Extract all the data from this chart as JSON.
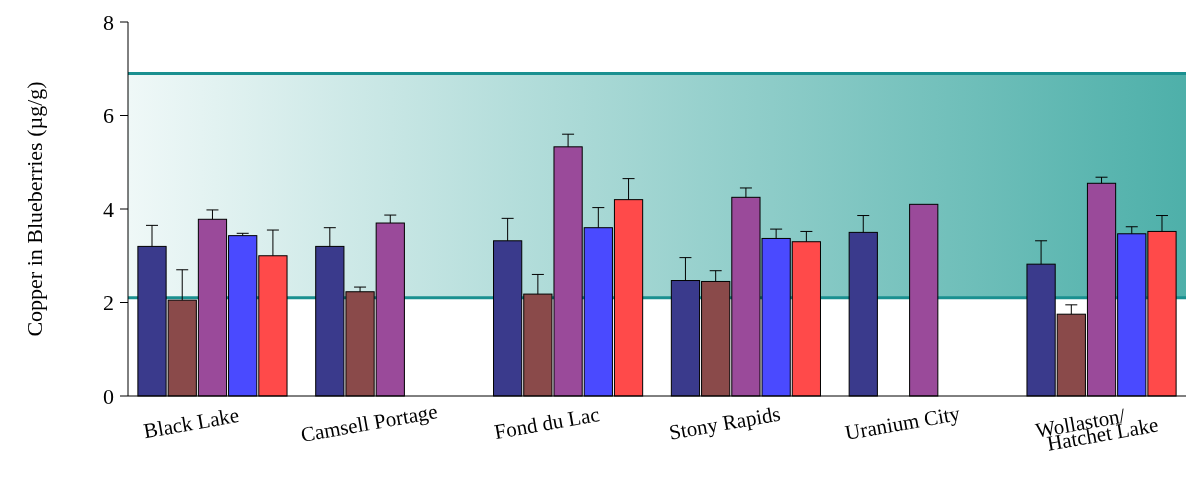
{
  "chart_data": {
    "type": "bar",
    "ylabel": "Copper in Blueberries (µg/g)",
    "categories": [
      "Black Lake",
      "Camsell Portage",
      "Fond du Lac",
      "Stony Rapids",
      "Uranium City",
      "Wollaston/\nHatchet Lake"
    ],
    "series": [
      {
        "color": "#3a3a8c",
        "values": [
          3.2,
          3.2,
          3.32,
          2.47,
          3.5,
          2.82
        ],
        "errors": [
          [
            3.2,
            3.65
          ],
          [
            3.2,
            3.6
          ],
          [
            3.32,
            3.8
          ],
          [
            2.47,
            2.96
          ],
          [
            3.5,
            3.86
          ],
          [
            2.82,
            3.32
          ]
        ]
      },
      {
        "color": "#8a4a4a",
        "values": [
          2.05,
          2.23,
          2.18,
          2.45,
          null,
          1.75
        ],
        "errors": [
          [
            2.05,
            2.7
          ],
          [
            2.23,
            2.33
          ],
          [
            2.18,
            2.6
          ],
          [
            2.45,
            2.68
          ],
          null,
          [
            1.75,
            1.95
          ]
        ]
      },
      {
        "color": "#9a4a9a",
        "values": [
          3.78,
          3.7,
          5.33,
          4.25,
          4.1,
          4.55
        ],
        "errors": [
          [
            3.78,
            3.98
          ],
          [
            3.7,
            3.87
          ],
          [
            5.33,
            5.6
          ],
          [
            4.25,
            4.45
          ],
          null,
          [
            4.55,
            4.68
          ]
        ]
      },
      {
        "color": "#4a4aff",
        "values": [
          3.43,
          null,
          3.6,
          3.37,
          null,
          3.47
        ],
        "errors": [
          [
            3.43,
            3.48
          ],
          null,
          [
            3.6,
            4.03
          ],
          [
            3.37,
            3.57
          ],
          null,
          [
            3.47,
            3.62
          ]
        ]
      },
      {
        "color": "#ff4a4a",
        "values": [
          3.0,
          null,
          4.2,
          3.3,
          null,
          3.52
        ],
        "errors": [
          [
            3.0,
            3.55
          ],
          null,
          [
            4.2,
            4.65
          ],
          [
            3.3,
            3.52
          ],
          null,
          [
            3.52,
            3.86
          ]
        ]
      }
    ],
    "ylim": [
      0,
      8
    ],
    "yticks": [
      0,
      2,
      4,
      6,
      8
    ],
    "bands": [
      {
        "axis": "y",
        "from": 2.1,
        "to": 6.9,
        "color": "#3aa7a0"
      }
    ],
    "ref_lines": [
      {
        "axis": "y",
        "value": 6.9,
        "color": "#1a9090"
      },
      {
        "axis": "y",
        "value": 2.1,
        "color": "#1a9090"
      }
    ]
  }
}
